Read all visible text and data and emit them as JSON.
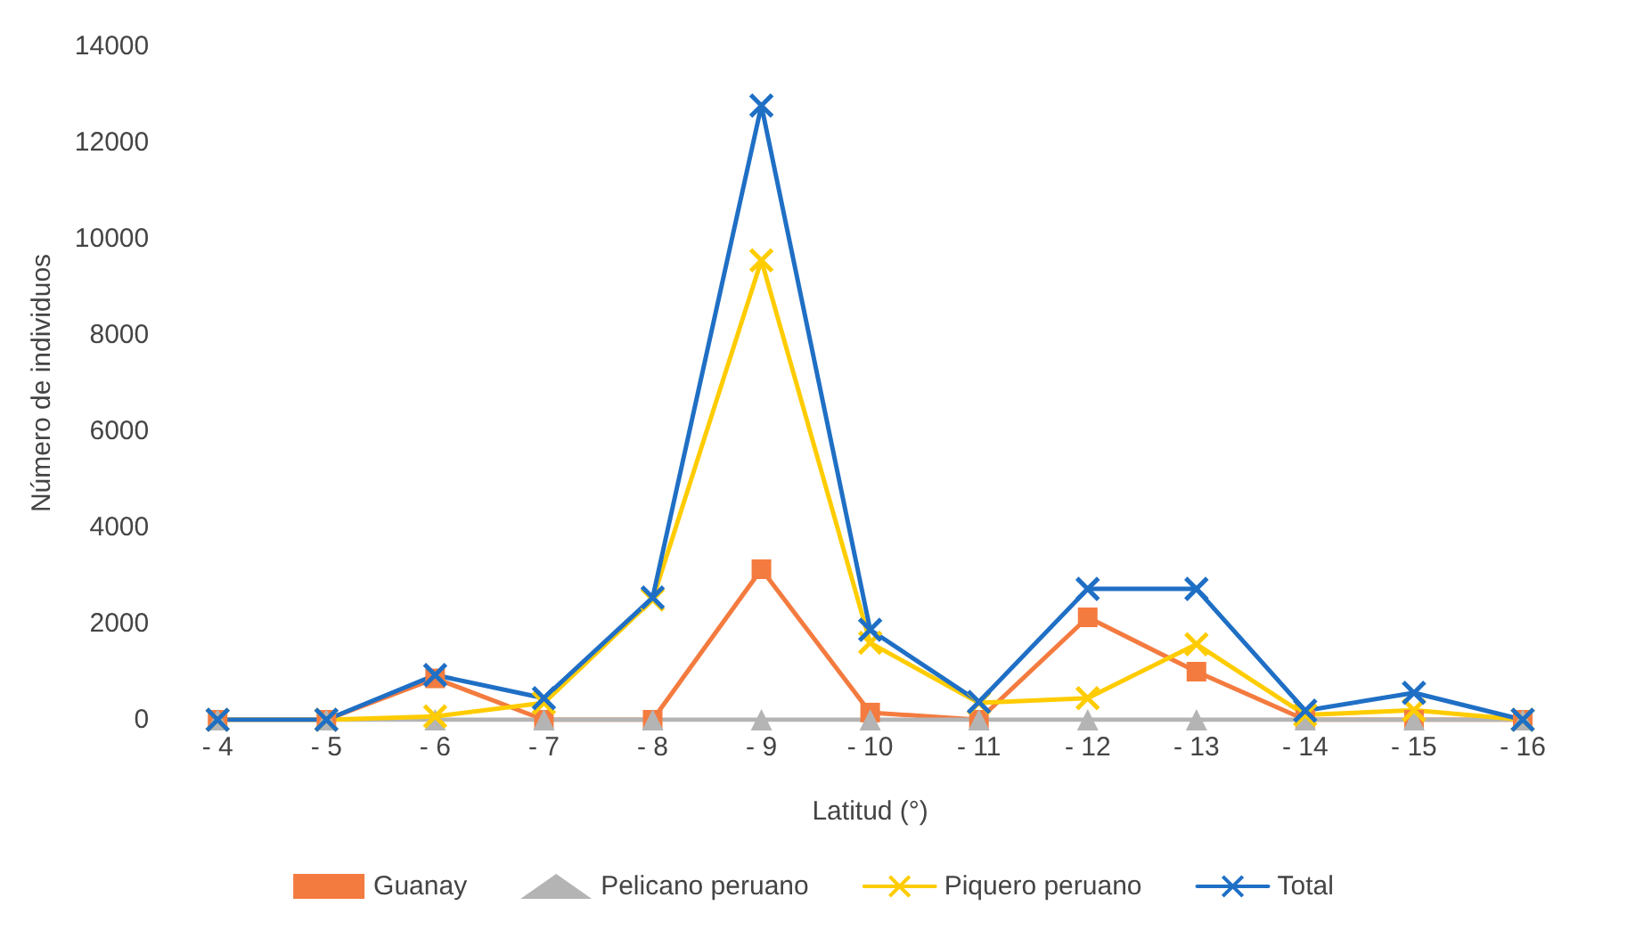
{
  "chart_data": {
    "type": "line",
    "xlabel": "Latitud (°)",
    "ylabel": "Número de individuos",
    "categories": [
      "- 4",
      "- 5",
      "- 6",
      "- 7",
      "- 8",
      "- 9",
      "- 10",
      "- 11",
      "- 12",
      "- 13",
      "- 14",
      "- 15",
      "- 16"
    ],
    "series": [
      {
        "name": "Guanay",
        "color": "#f47b3f",
        "marker": "square",
        "values": [
          0,
          0,
          860,
          0,
          0,
          3130,
          150,
          0,
          2130,
          1000,
          0,
          0,
          0
        ]
      },
      {
        "name": "Pelicano peruano",
        "color": "#b4b4b4",
        "marker": "triangle",
        "values": [
          0,
          0,
          0,
          0,
          0,
          0,
          0,
          0,
          0,
          0,
          0,
          0,
          0
        ]
      },
      {
        "name": "Piquero peruano",
        "color": "#ffcc00",
        "marker": "cross",
        "values": [
          0,
          0,
          70,
          350,
          2500,
          9550,
          1600,
          350,
          450,
          1570,
          100,
          200,
          0
        ]
      },
      {
        "name": "Total",
        "color": "#1f6fc5",
        "marker": "cross",
        "values": [
          0,
          0,
          930,
          450,
          2540,
          12770,
          1870,
          370,
          2720,
          2720,
          190,
          560,
          0
        ]
      }
    ],
    "ylim": [
      0,
      14000
    ],
    "yticks": [
      0,
      2000,
      4000,
      6000,
      8000,
      10000,
      12000,
      14000
    ],
    "grid": false,
    "legend": "bottom",
    "line_style": "solid"
  }
}
